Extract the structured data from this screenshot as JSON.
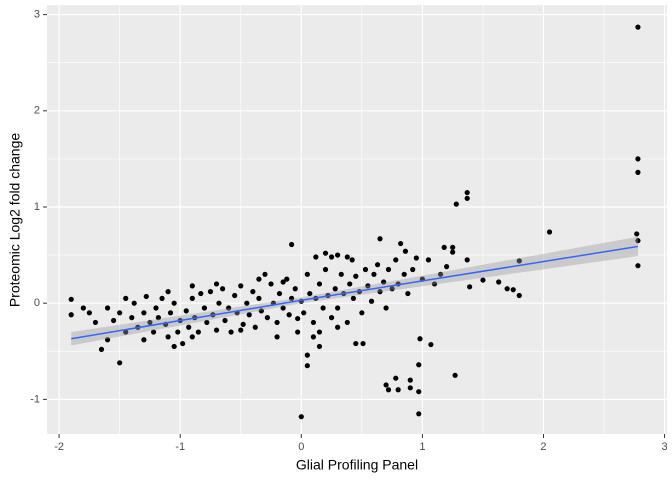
{
  "chart_data": {
    "type": "scatter",
    "x_label": "Glial Profiling Panel",
    "y_label": "Proteomic Log2 fold change",
    "xlim": [
      -2.1,
      3.02
    ],
    "ylim": [
      -1.36,
      3.1
    ],
    "xticks": [
      -2,
      -1,
      0,
      1,
      2,
      3
    ],
    "yticks": [
      -1,
      0,
      1,
      2,
      3
    ],
    "grid": true,
    "color": "#000000",
    "x": [
      2.78,
      2.78,
      2.78,
      2.77,
      2.78,
      2.78,
      2.05,
      1.8,
      1.37,
      1.37,
      1.28,
      1.25,
      1.25,
      1.18,
      1.37,
      1.39,
      1.5,
      1.63,
      1.7,
      1.75,
      1.8,
      1.27,
      1.07,
      0.98,
      0.97,
      0.97,
      0.97,
      0.9,
      0.9,
      0.78,
      0.72,
      0.7,
      0.8,
      0.45,
      0.51,
      0.05,
      0.05,
      0,
      -0.03,
      0.15,
      0.15,
      -1.9,
      -1.9,
      -1.75,
      -1.65,
      -1.6,
      -1.5,
      -1.45,
      -0.08,
      0.65,
      0.82,
      0.86,
      0.3,
      0.38,
      0.12,
      0.2,
      -1.4,
      -1.38,
      -1.35,
      -1.3,
      -1.28,
      -1.25,
      -1.22,
      -1.2,
      -1.18,
      -1.15,
      -1.12,
      -1.1,
      -1.08,
      -1.05,
      -1.02,
      -1.0,
      -0.98,
      -0.95,
      -0.93,
      -0.9,
      -0.88,
      -0.85,
      -0.83,
      -0.8,
      -0.78,
      -0.75,
      -0.73,
      -0.7,
      -0.68,
      -0.65,
      -0.63,
      -0.6,
      -0.58,
      -0.55,
      -0.53,
      -0.5,
      -0.48,
      -0.45,
      -0.43,
      -0.4,
      -0.38,
      -0.35,
      -0.33,
      -0.3,
      -0.28,
      -0.25,
      -0.23,
      -0.2,
      -0.18,
      -0.15,
      -0.12,
      -0.1,
      -0.08,
      -0.05,
      -0.03,
      0.0,
      0.02,
      0.05,
      0.07,
      0.1,
      0.12,
      0.15,
      0.18,
      0.2,
      0.22,
      0.25,
      0.28,
      0.3,
      0.33,
      0.35,
      0.38,
      0.4,
      0.43,
      0.45,
      0.48,
      0.5,
      0.53,
      0.55,
      0.58,
      0.6,
      0.63,
      0.65,
      0.68,
      0.7,
      0.72,
      0.75,
      0.78,
      0.8,
      0.85,
      0.88,
      0.92,
      0.95,
      1.0,
      1.05,
      1.1,
      1.15,
      1.2,
      -1.55,
      -1.5,
      -1.45,
      -1.6,
      -1.7,
      -1.8,
      -1.3,
      -1.05,
      -0.9,
      -0.5,
      -0.2,
      0.1,
      0.3,
      -0.7,
      -0.9,
      -1.1,
      -0.35,
      -0.15,
      0.25,
      0.42
    ],
    "values": [
      2.87,
      1.5,
      1.36,
      0.72,
      0.65,
      0.39,
      0.74,
      0.44,
      1.15,
      1.09,
      1.03,
      0.58,
      0.53,
      0.58,
      0.45,
      0.17,
      0.24,
      0.22,
      0.15,
      0.14,
      0.08,
      -0.75,
      -0.43,
      -0.37,
      -0.64,
      -0.92,
      -1.15,
      -0.8,
      -0.88,
      -0.78,
      -0.9,
      -0.85,
      -0.9,
      -0.42,
      -0.42,
      -0.65,
      -0.54,
      -1.18,
      -0.16,
      -0.45,
      -0.3,
      0.04,
      -0.12,
      -0.1,
      -0.48,
      -0.38,
      -0.62,
      -0.3,
      0.61,
      0.67,
      0.62,
      0.54,
      0.5,
      0.48,
      0.48,
      0.52,
      -0.15,
      0.0,
      -0.25,
      -0.1,
      0.07,
      -0.2,
      -0.3,
      -0.05,
      -0.15,
      0.05,
      -0.22,
      -0.35,
      -0.1,
      0.0,
      -0.3,
      -0.18,
      -0.42,
      -0.08,
      -0.25,
      0.05,
      -0.15,
      -0.3,
      0.1,
      -0.05,
      -0.2,
      0.12,
      -0.12,
      -0.28,
      0.0,
      0.15,
      -0.18,
      -0.05,
      -0.3,
      0.08,
      -0.1,
      0.18,
      -0.22,
      0.0,
      -0.12,
      0.12,
      -0.25,
      0.05,
      -0.08,
      0.3,
      -0.15,
      0.2,
      0.0,
      -0.2,
      0.1,
      -0.05,
      0.25,
      -0.12,
      0.05,
      0.15,
      -0.3,
      0.02,
      -0.1,
      0.3,
      0.1,
      -0.2,
      0.05,
      0.2,
      -0.05,
      0.35,
      0.08,
      -0.15,
      0.15,
      -0.05,
      0.3,
      0.1,
      -0.2,
      0.2,
      0.05,
      0.28,
      0.12,
      -0.1,
      0.35,
      0.18,
      0.02,
      0.3,
      0.4,
      0.12,
      0.22,
      -0.05,
      0.35,
      0.15,
      0.45,
      0.2,
      0.3,
      0.1,
      0.35,
      0.47,
      0.25,
      0.45,
      0.2,
      0.3,
      0.38,
      -0.18,
      -0.1,
      0.05,
      -0.05,
      -0.2,
      -0.05,
      -0.38,
      -0.45,
      -0.35,
      -0.28,
      -0.35,
      -0.35,
      -0.25,
      0.2,
      0.18,
      0.12,
      0.25,
      0.22,
      0.48,
      0.45
    ],
    "fit": {
      "color": "#3366ff",
      "band_color": "#999999",
      "x": [
        -1.9,
        0,
        2.78
      ],
      "values": [
        -0.37,
        0.03,
        0.59
      ],
      "lower": [
        -0.44,
        0.0,
        0.49
      ],
      "upper": [
        -0.3,
        0.06,
        0.69
      ]
    }
  }
}
